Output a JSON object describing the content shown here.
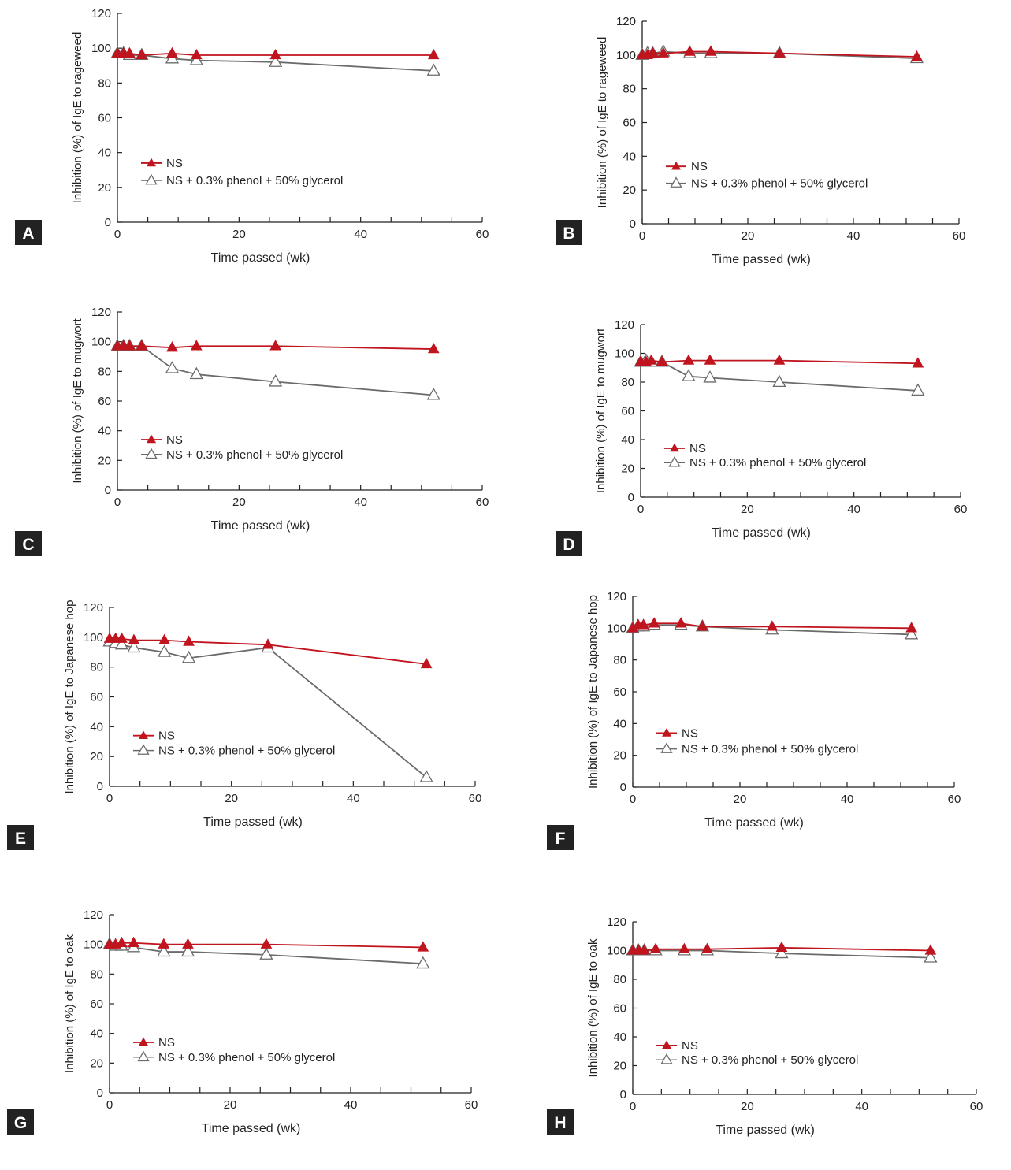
{
  "colors": {
    "ns_series": "#c0141e",
    "ns_phenol_series": "#6b6b6b",
    "axis": "#222222",
    "panel_label_bg": "#222222",
    "panel_label_text": "#ffffff"
  },
  "chart_data": [
    {
      "panel": "A",
      "type": "line",
      "title": "",
      "xlabel": "Time passed (wk)",
      "ylabel": "Inhibition (%) of IgE to rageweed",
      "xlim": [
        0,
        60
      ],
      "ylim": [
        0,
        120
      ],
      "xticks": [
        0,
        20,
        40,
        60
      ],
      "yticks": [
        0,
        20,
        40,
        60,
        80,
        100,
        120
      ],
      "legend_position": "lower-left",
      "grid": false,
      "series": [
        {
          "name": "NS",
          "marker": "filled-triangle",
          "x": [
            0,
            1,
            2,
            4,
            9,
            13,
            26,
            52
          ],
          "y": [
            97,
            97,
            97,
            96,
            97,
            96,
            96,
            96
          ]
        },
        {
          "name": "NS + 0.3% phenol + 50% glycerol",
          "marker": "open-triangle",
          "x": [
            0,
            1,
            2,
            4,
            9,
            13,
            26,
            52
          ],
          "y": [
            97,
            97,
            96,
            96,
            94,
            93,
            92,
            87
          ]
        }
      ]
    },
    {
      "panel": "B",
      "type": "line",
      "title": "",
      "xlabel": "Time passed (wk)",
      "ylabel": "Inhibition (%) of IgE to rageweed",
      "xlim": [
        0,
        60
      ],
      "ylim": [
        0,
        120
      ],
      "xticks": [
        0,
        20,
        40,
        60
      ],
      "yticks": [
        0,
        20,
        40,
        60,
        80,
        100,
        120
      ],
      "legend_position": "lower-left",
      "grid": false,
      "series": [
        {
          "name": "NS",
          "marker": "filled-triangle",
          "x": [
            0,
            1,
            2,
            4,
            9,
            13,
            26,
            52
          ],
          "y": [
            100,
            100,
            101,
            101,
            102,
            102,
            101,
            99
          ]
        },
        {
          "name": "NS + 0.3% phenol + 50% glycerol",
          "marker": "open-triangle",
          "x": [
            0,
            1,
            2,
            4,
            9,
            13,
            26,
            52
          ],
          "y": [
            100,
            101,
            101,
            102,
            101,
            101,
            101,
            98
          ]
        }
      ]
    },
    {
      "panel": "C",
      "type": "line",
      "title": "",
      "xlabel": "Time passed (wk)",
      "ylabel": "Inhibition (%) of IgE to mugwort",
      "xlim": [
        0,
        60
      ],
      "ylim": [
        0,
        120
      ],
      "xticks": [
        0,
        20,
        40,
        60
      ],
      "yticks": [
        0,
        20,
        40,
        60,
        80,
        100,
        120
      ],
      "legend_position": "lower-left",
      "grid": false,
      "series": [
        {
          "name": "NS",
          "marker": "filled-triangle",
          "x": [
            0,
            1,
            2,
            4,
            9,
            13,
            26,
            52
          ],
          "y": [
            97,
            97,
            97,
            97,
            96,
            97,
            97,
            95
          ]
        },
        {
          "name": "NS + 0.3% phenol + 50% glycerol",
          "marker": "open-triangle",
          "x": [
            0,
            1,
            2,
            4,
            9,
            13,
            26,
            52
          ],
          "y": [
            97,
            97,
            97,
            97,
            82,
            78,
            73,
            64
          ]
        }
      ]
    },
    {
      "panel": "D",
      "type": "line",
      "title": "",
      "xlabel": "Time passed (wk)",
      "ylabel": "Inhibition (%) of IgE to mugwort",
      "xlim": [
        0,
        60
      ],
      "ylim": [
        0,
        120
      ],
      "xticks": [
        0,
        20,
        40,
        60
      ],
      "yticks": [
        0,
        20,
        40,
        60,
        80,
        100,
        120
      ],
      "legend_position": "lower-left",
      "grid": false,
      "series": [
        {
          "name": "NS",
          "marker": "filled-triangle",
          "x": [
            0,
            1,
            2,
            4,
            9,
            13,
            26,
            52
          ],
          "y": [
            94,
            94,
            95,
            94,
            95,
            95,
            95,
            93
          ]
        },
        {
          "name": "NS + 0.3% phenol + 50% glycerol",
          "marker": "open-triangle",
          "x": [
            0,
            1,
            2,
            4,
            9,
            13,
            26,
            52
          ],
          "y": [
            94,
            95,
            94,
            94,
            84,
            83,
            80,
            74
          ]
        }
      ]
    },
    {
      "panel": "E",
      "type": "line",
      "title": "",
      "xlabel": "Time passed (wk)",
      "ylabel": "Inhibition (%) of IgE to Japanese hop",
      "xlim": [
        0,
        60
      ],
      "ylim": [
        0,
        120
      ],
      "xticks": [
        0,
        20,
        40,
        60
      ],
      "yticks": [
        0,
        20,
        40,
        60,
        80,
        100,
        120
      ],
      "legend_position": "lower-left",
      "grid": false,
      "series": [
        {
          "name": "NS",
          "marker": "filled-triangle",
          "x": [
            0,
            1,
            2,
            4,
            9,
            13,
            26,
            52
          ],
          "y": [
            99,
            99,
            99,
            98,
            98,
            97,
            95,
            82
          ]
        },
        {
          "name": "NS + 0.3% phenol + 50% glycerol",
          "marker": "open-triangle",
          "x": [
            0,
            1,
            2,
            4,
            9,
            13,
            26,
            52
          ],
          "y": [
            97,
            96,
            95,
            93,
            90,
            86,
            93,
            6
          ]
        }
      ]
    },
    {
      "panel": "F",
      "type": "line",
      "title": "",
      "xlabel": "Time passed (wk)",
      "ylabel": "Inhibition (%) of IgE to Japanese hop",
      "xlim": [
        0,
        60
      ],
      "ylim": [
        0,
        120
      ],
      "xticks": [
        0,
        20,
        40,
        60
      ],
      "yticks": [
        0,
        20,
        40,
        60,
        80,
        100,
        120
      ],
      "legend_position": "lower-left",
      "grid": false,
      "series": [
        {
          "name": "NS",
          "marker": "filled-triangle",
          "x": [
            0,
            1,
            2,
            4,
            9,
            13,
            26,
            52
          ],
          "y": [
            100,
            102,
            102,
            103,
            103,
            101,
            101,
            100
          ]
        },
        {
          "name": "NS + 0.3% phenol + 50% glycerol",
          "marker": "open-triangle",
          "x": [
            0,
            1,
            2,
            4,
            9,
            13,
            26,
            52
          ],
          "y": [
            100,
            101,
            101,
            102,
            102,
            101,
            99,
            96
          ]
        }
      ]
    },
    {
      "panel": "G",
      "type": "line",
      "title": "",
      "xlabel": "Time passed (wk)",
      "ylabel": "Inhibition (%) of IgE to oak",
      "xlim": [
        0,
        60
      ],
      "ylim": [
        0,
        120
      ],
      "xticks": [
        0,
        20,
        40,
        60
      ],
      "yticks": [
        0,
        20,
        40,
        60,
        80,
        100,
        120
      ],
      "legend_position": "lower-left",
      "grid": false,
      "series": [
        {
          "name": "NS",
          "marker": "filled-triangle",
          "x": [
            0,
            1,
            2,
            4,
            9,
            13,
            26,
            52
          ],
          "y": [
            100,
            100,
            101,
            101,
            100,
            100,
            100,
            98
          ]
        },
        {
          "name": "NS + 0.3% phenol + 50% glycerol",
          "marker": "open-triangle",
          "x": [
            0,
            1,
            2,
            4,
            9,
            13,
            26,
            52
          ],
          "y": [
            100,
            99,
            99,
            98,
            95,
            95,
            93,
            87
          ]
        }
      ]
    },
    {
      "panel": "H",
      "type": "line",
      "title": "",
      "xlabel": "Time passed (wk)",
      "ylabel": "Inhibition (%) of IgE to oak",
      "xlim": [
        0,
        60
      ],
      "ylim": [
        0,
        120
      ],
      "xticks": [
        0,
        20,
        40,
        60
      ],
      "yticks": [
        0,
        20,
        40,
        60,
        80,
        100,
        120
      ],
      "legend_position": "lower-left",
      "grid": false,
      "series": [
        {
          "name": "NS",
          "marker": "filled-triangle",
          "x": [
            0,
            1,
            2,
            4,
            9,
            13,
            26,
            52
          ],
          "y": [
            100,
            100,
            100,
            101,
            101,
            101,
            102,
            100
          ]
        },
        {
          "name": "NS + 0.3% phenol + 50% glycerol",
          "marker": "open-triangle",
          "x": [
            0,
            1,
            2,
            4,
            9,
            13,
            26,
            52
          ],
          "y": [
            100,
            100,
            100,
            100,
            100,
            100,
            98,
            95
          ]
        }
      ]
    }
  ]
}
